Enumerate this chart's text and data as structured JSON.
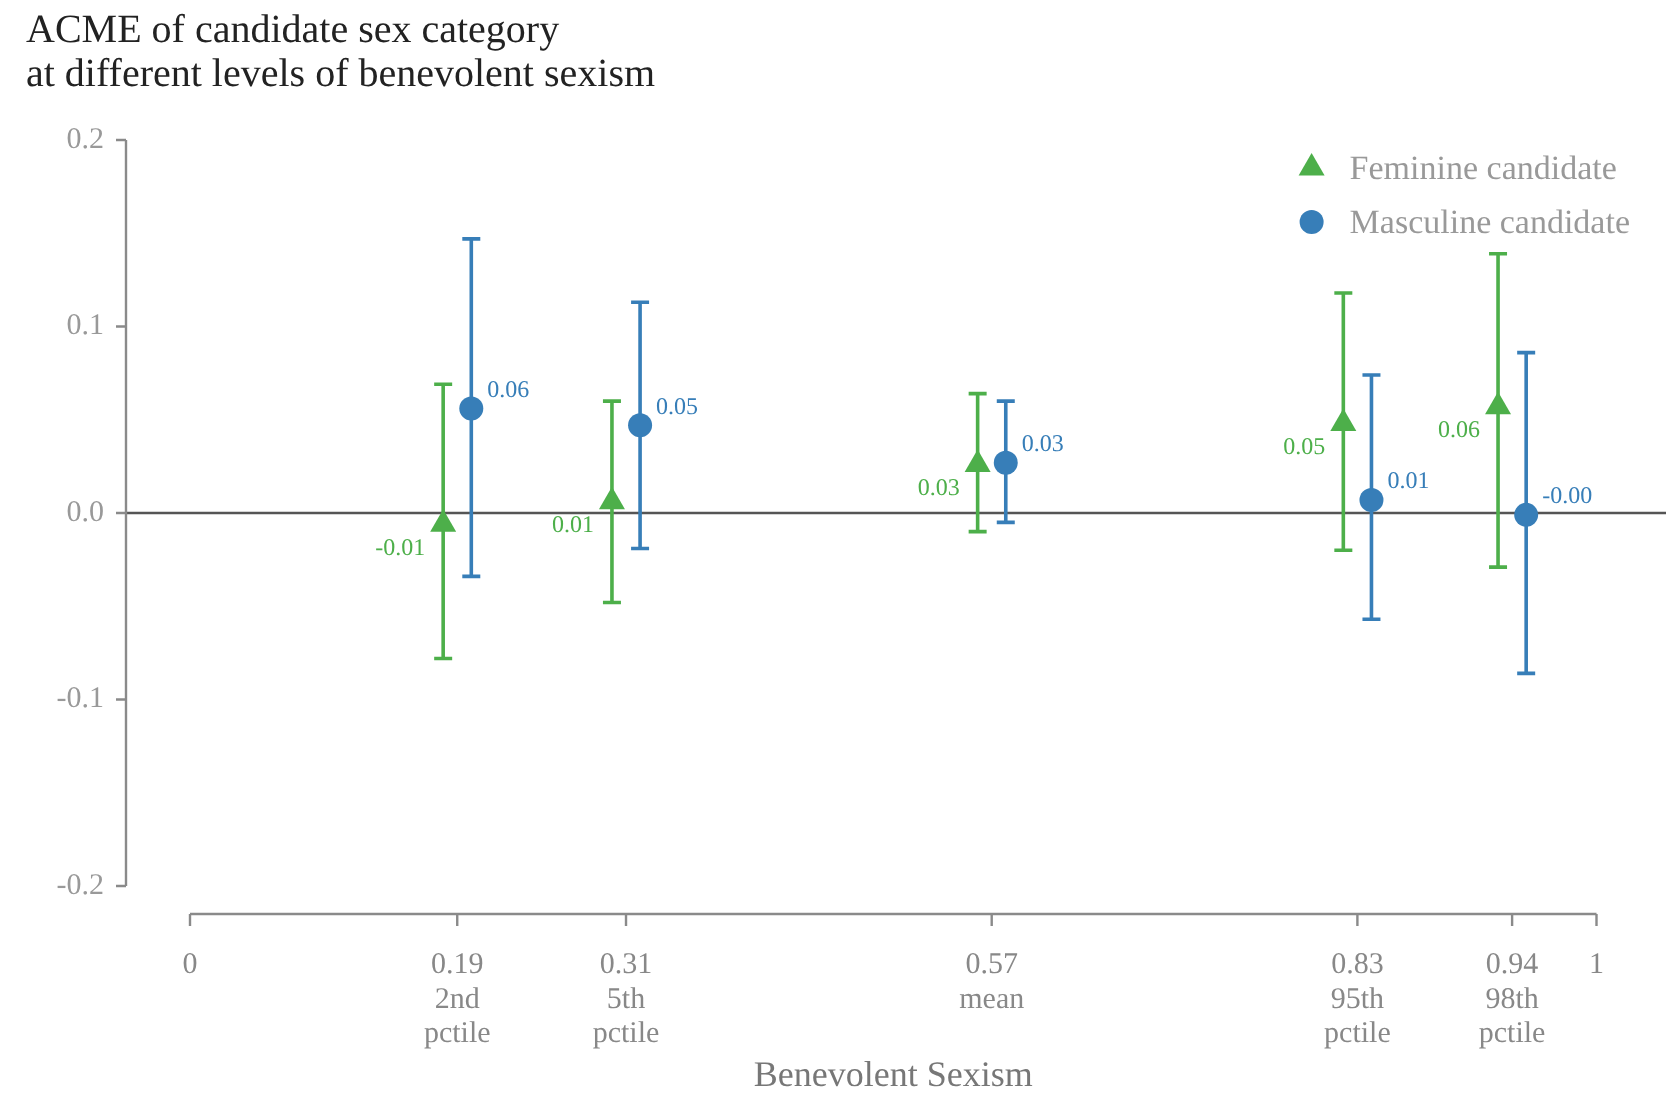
{
  "chart_data": {
    "type": "scatter",
    "title": "ACME of candidate sex category\nat different levels of benevolent sexism",
    "xlabel": "Benevolent Sexism",
    "xlim": [
      0,
      1
    ],
    "xticks": [
      0,
      {
        "value": 0.19,
        "label": "0.19\n2nd\npctile"
      },
      {
        "value": 0.31,
        "label": "0.31\n5th\npctile"
      },
      {
        "value": 0.57,
        "label": "0.57\nmean"
      },
      {
        "value": 0.83,
        "label": "0.83\n95th\npctile"
      },
      {
        "value": 0.94,
        "label": "0.94\n98th\npctile"
      },
      1
    ],
    "ylim": [
      -0.2,
      0.2
    ],
    "yticks": [
      -0.2,
      -0.1,
      {
        "value": 0,
        "label": "0.0"
      },
      0.1,
      0.2
    ],
    "legend": "top right",
    "ref_lines": [
      {
        "axis": "y",
        "value": 0,
        "color": "#555555"
      }
    ],
    "series": [
      {
        "name": "Feminine candidate",
        "color": "#4daf4a",
        "marker": "triangle",
        "x": [
          0.18,
          0.3,
          0.56,
          0.82,
          0.93
        ],
        "values": [
          -0.006,
          0.006,
          0.026,
          0.048,
          0.057
        ],
        "errors": [
          [
            -0.078,
            0.069
          ],
          [
            -0.048,
            0.06
          ],
          [
            -0.01,
            0.064
          ],
          [
            -0.02,
            0.118
          ],
          [
            -0.029,
            0.139
          ]
        ],
        "value_labels": [
          "-0.01",
          "0.01",
          "0.03",
          "0.05",
          "0.06"
        ]
      },
      {
        "name": "Masculine candidate",
        "color": "#377eb8",
        "marker": "circle",
        "x": [
          0.2,
          0.32,
          0.58,
          0.84,
          0.95
        ],
        "values": [
          0.056,
          0.047,
          0.027,
          0.007,
          -0.001
        ],
        "errors": [
          [
            -0.034,
            0.147
          ],
          [
            -0.019,
            0.113
          ],
          [
            -0.005,
            0.06
          ],
          [
            -0.057,
            0.074
          ],
          [
            -0.086,
            0.086
          ]
        ],
        "value_labels": [
          "0.06",
          "0.05",
          "0.03",
          "0.01",
          "-0.00"
        ]
      }
    ]
  }
}
